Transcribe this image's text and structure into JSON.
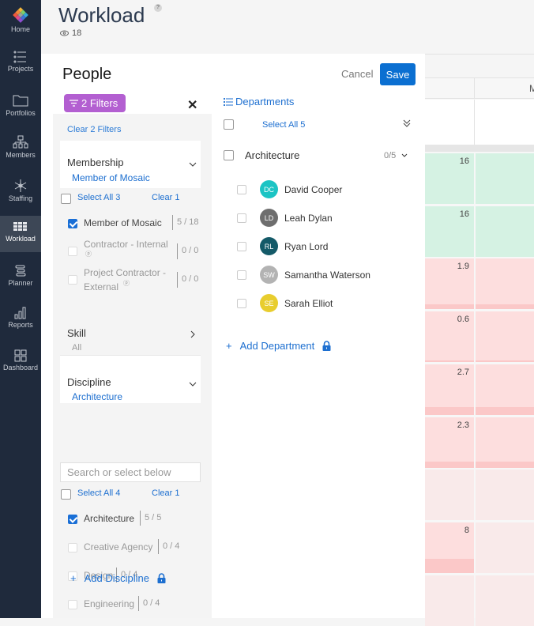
{
  "nav": {
    "items": [
      {
        "label": "Home",
        "icon": "mosaic-logo-icon"
      },
      {
        "label": "Projects",
        "icon": "list-icon"
      },
      {
        "label": "Portfolios",
        "icon": "folder-icon"
      },
      {
        "label": "Members",
        "icon": "org-chart-icon"
      },
      {
        "label": "Staffing",
        "icon": "network-icon"
      },
      {
        "label": "Workload",
        "icon": "grid-icon",
        "active": true
      },
      {
        "label": "Planner",
        "icon": "planner-icon"
      },
      {
        "label": "Reports",
        "icon": "bar-chart-icon"
      },
      {
        "label": "Dashboard",
        "icon": "dashboard-icon"
      }
    ]
  },
  "header": {
    "title": "Workload",
    "help": "?",
    "view_count": "18"
  },
  "panel": {
    "title": "People",
    "filters_pill": "2 Filters",
    "close": "✕",
    "cancel": "Cancel",
    "save": "Save",
    "clear_filters": "Clear 2 Filters",
    "membership": {
      "title": "Membership",
      "selected": "Member of Mosaic",
      "select_all": "Select All 3",
      "clear": "Clear 1",
      "options": [
        {
          "label": "Member of Mosaic",
          "count": "5 / 18",
          "checked": true
        },
        {
          "label": "Contractor - Internal",
          "count": "0 / 0",
          "checked": false
        },
        {
          "label": "Project Contractor -",
          "label2": "External",
          "count": "0 / 0",
          "checked": false
        }
      ]
    },
    "skill": {
      "title": "Skill",
      "selected": "All"
    },
    "discipline": {
      "title": "Discipline",
      "selected": "Architecture",
      "search_placeholder": "Search or select below",
      "select_all": "Select All 4",
      "clear": "Clear 1",
      "options": [
        {
          "label": "Architecture",
          "count": "5 / 5",
          "checked": true
        },
        {
          "label": "Creative Agency",
          "count": "0 / 4",
          "checked": false
        },
        {
          "label": "Design",
          "count": "0 / 4",
          "checked": false
        },
        {
          "label": "Engineering",
          "count": "0 / 4",
          "checked": false
        }
      ],
      "add": "Add Discipline"
    },
    "departments": {
      "title": "Departments",
      "select_all": "Select All 5",
      "group": "Architecture",
      "group_count": "0/5",
      "people": [
        {
          "initials": "DC",
          "name": "David Cooper",
          "color": "#1cc4c4"
        },
        {
          "initials": "LD",
          "name": "Leah Dylan",
          "color": "#6e6e6e"
        },
        {
          "initials": "RL",
          "name": "Ryan Lord",
          "color": "#145a68"
        },
        {
          "initials": "SW",
          "name": "Samantha Waterson",
          "color": "#b3b3b3"
        },
        {
          "initials": "SE",
          "name": "Sarah Elliot",
          "color": "#e8cd2e"
        }
      ],
      "add": "Add Department"
    }
  },
  "grid": {
    "header_partial": "M",
    "cells": [
      "16",
      "16",
      "1.9",
      "0.6",
      "2.7",
      "2.3",
      "",
      "8",
      ""
    ]
  }
}
